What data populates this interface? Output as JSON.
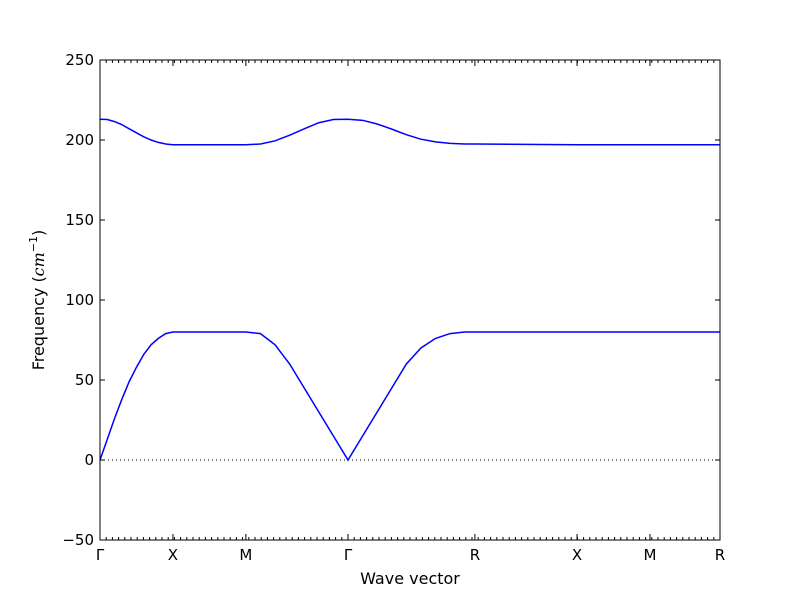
{
  "chart_data": {
    "type": "line",
    "title": "",
    "xlabel": "Wave vector",
    "ylabel_text": "Frequency (",
    "ylabel_unit": "cm",
    "ylabel_exp": "−1",
    "ylabel_close": ")",
    "xlim": [
      0,
      8.5
    ],
    "ylim": [
      -50,
      250
    ],
    "yticks": [
      -50,
      0,
      50,
      100,
      150,
      200,
      250
    ],
    "xticks": [
      {
        "pos": 0,
        "label": "Γ"
      },
      {
        "pos": 1,
        "label": "X"
      },
      {
        "pos": 2,
        "label": "M"
      },
      {
        "pos": 3.4,
        "label": "Γ"
      },
      {
        "pos": 5.14,
        "label": "R"
      },
      {
        "pos": 6.54,
        "label": "X"
      },
      {
        "pos": 7.54,
        "label": "M"
      },
      {
        "pos": 8.5,
        "label": "R"
      }
    ],
    "zero_line": true,
    "line_color": "#0000ff",
    "series": [
      {
        "x": [
          0,
          0.1,
          0.2,
          0.3,
          0.4,
          0.5,
          0.6,
          0.7,
          0.8,
          0.9,
          1.0,
          1.5,
          2.0,
          2.2,
          2.4,
          2.6,
          2.8,
          3.0,
          3.2,
          3.4,
          3.6,
          3.8,
          4.0,
          4.2,
          4.4,
          4.6,
          4.8,
          5.0,
          5.14,
          6.54,
          7.54,
          8.5
        ],
        "y": [
          0,
          13,
          26,
          38,
          49,
          58,
          66,
          72,
          76,
          79,
          80,
          80,
          80,
          79,
          72,
          60,
          45,
          30,
          15,
          0,
          15,
          30,
          45,
          60,
          70,
          76,
          79,
          80,
          80,
          80,
          80,
          80
        ]
      },
      {
        "x": [
          0,
          0.1,
          0.2,
          0.3,
          0.4,
          0.5,
          0.6,
          0.7,
          0.8,
          0.9,
          1.0,
          1.5,
          2.0,
          2.2,
          2.4,
          2.6,
          2.8,
          3.0,
          3.2,
          3.4,
          3.6,
          3.8,
          4.0,
          4.2,
          4.4,
          4.6,
          4.8,
          5.0,
          5.14,
          6.54,
          7.54,
          8.5
        ],
        "y": [
          213,
          212.8,
          211.5,
          209.6,
          207,
          204.5,
          202,
          200,
          198.5,
          197.5,
          197,
          197,
          197,
          197.5,
          199.5,
          203,
          207,
          210.8,
          212.8,
          213,
          212.3,
          210,
          206.8,
          203.3,
          200.5,
          198.8,
          197.9,
          197.5,
          197.5,
          197,
          197,
          197
        ]
      }
    ]
  }
}
